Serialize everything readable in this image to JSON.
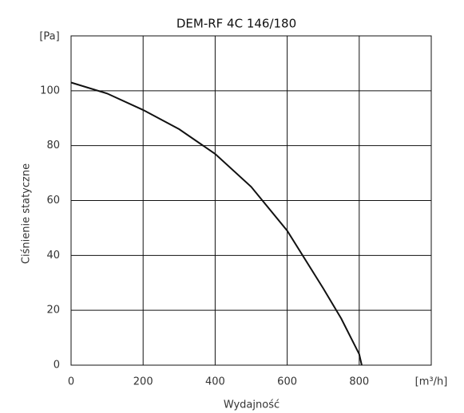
{
  "chart_data": {
    "type": "line",
    "title": "DEM-RF 4C 146/180",
    "x_label": "Wydajność",
    "y_label": "Ciśnienie statyczne",
    "x_unit": "[m³/h]",
    "y_unit": "[Pa]",
    "x": [
      0,
      100,
      200,
      300,
      400,
      500,
      600,
      700,
      750,
      800,
      807
    ],
    "series": [
      {
        "color": "#111111",
        "values": [
          103,
          99,
          93,
          86,
          77,
          65,
          49,
          28,
          17,
          4,
          0
        ]
      }
    ],
    "xlim": [
      0,
      1000
    ],
    "xticks": [
      0,
      200,
      400,
      600,
      800
    ],
    "ylim": [
      0,
      120
    ],
    "yticks": [
      0,
      20,
      40,
      60,
      80,
      100
    ],
    "grid": true
  }
}
